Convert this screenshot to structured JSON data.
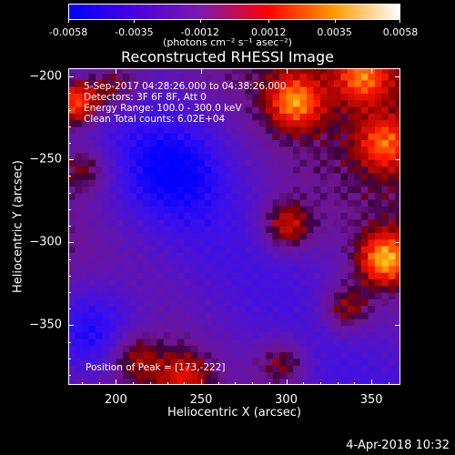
{
  "colorbar": {
    "min": -0.0058,
    "max": 0.0058,
    "ticks": [
      "-0.0058",
      "-0.0035",
      "-0.0012",
      "0.0012",
      "0.0035",
      "0.0058"
    ],
    "tick_values": [
      -0.0058,
      -0.0035,
      -0.0012,
      0.0012,
      0.0035,
      0.0058
    ],
    "units": "(photons cm⁻² s⁻¹ asec⁻²)",
    "colors": [
      "#0000ff",
      "#4b00e0",
      "#7d1aae",
      "#ff0000",
      "#ff9900",
      "#ffffff"
    ]
  },
  "chart_data": {
    "type": "heatmap",
    "title": "Reconstructed RHESSI Image",
    "xlabel": "Heliocentric X (arcsec)",
    "ylabel": "Heliocentric Y (arcsec)",
    "xlim": [
      172,
      367
    ],
    "ylim": [
      -386,
      -195
    ],
    "xticks": [
      200,
      250,
      300,
      350
    ],
    "yticks": [
      -200,
      -250,
      -300,
      -350
    ],
    "grid": false,
    "annotations": [
      "5-Sep-2017 04:28:26.000 to 04:38:26.000",
      "Detectors: 3F 6F 8F, Att 0",
      "Energy Range: 100.0 - 300.0 keV",
      "Clean     Total counts: 6.02E+04",
      "Position of Peak = [173,-222]"
    ],
    "peak": {
      "x": 173,
      "y": -222
    },
    "sources": [
      {
        "x": 176,
        "y": -215,
        "value": 0.0058
      },
      {
        "x": 200,
        "y": -205,
        "value": 0.003
      },
      {
        "x": 305,
        "y": -215,
        "value": 0.0042
      },
      {
        "x": 345,
        "y": -200,
        "value": 0.0036
      },
      {
        "x": 358,
        "y": -240,
        "value": 0.0034
      },
      {
        "x": 300,
        "y": -290,
        "value": 0.0036
      },
      {
        "x": 358,
        "y": -310,
        "value": 0.0052
      },
      {
        "x": 335,
        "y": -340,
        "value": 0.0032
      },
      {
        "x": 298,
        "y": -372,
        "value": 0.003
      },
      {
        "x": 240,
        "y": -380,
        "value": 0.0024
      },
      {
        "x": 210,
        "y": -368,
        "value": 0.0028
      },
      {
        "x": 182,
        "y": -255,
        "value": 0.0026
      }
    ],
    "background": {
      "negative_region_value": -0.003,
      "deep_negative": [
        {
          "x": 185,
          "y": -355,
          "value": -0.0058
        },
        {
          "x": 235,
          "y": -255,
          "value": -0.0035
        }
      ]
    }
  },
  "footer": "4-Apr-2018 10:32"
}
